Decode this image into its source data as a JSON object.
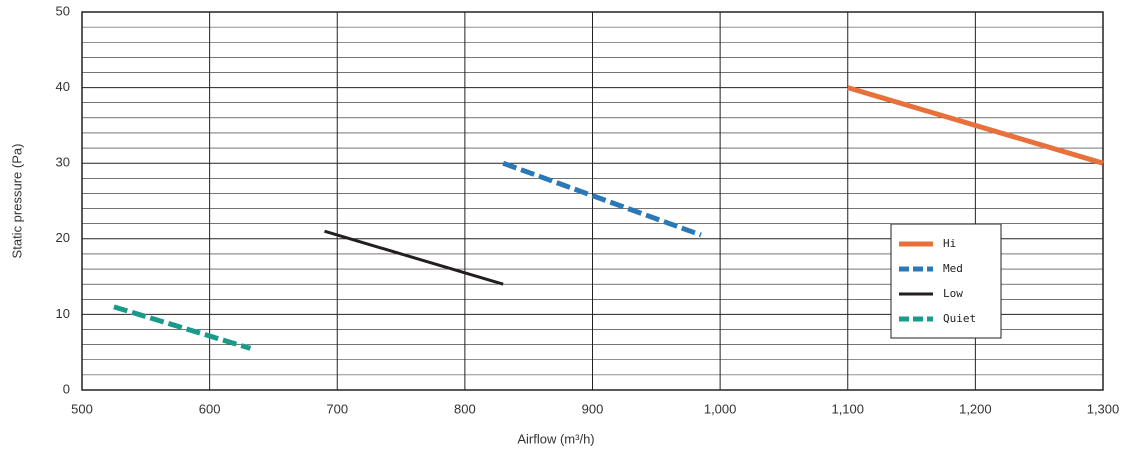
{
  "chart_data": {
    "type": "line",
    "x_label": "Airflow (m³/h)",
    "y_label": "Static pressure (Pa)",
    "xlim": [
      500,
      1300
    ],
    "xticks": [
      500,
      600,
      700,
      800,
      900,
      {
        "value": 1000,
        "label": "1,000"
      },
      {
        "value": 1100,
        "label": "1,100"
      },
      {
        "value": 1200,
        "label": "1,200"
      },
      {
        "value": 1300,
        "label": "1,300"
      }
    ],
    "ylim": [
      0,
      50
    ],
    "yticks": [
      0,
      10,
      20,
      30,
      40,
      50
    ],
    "minor_yticks": [
      2,
      4,
      6,
      8,
      12,
      14,
      16,
      18,
      22,
      24,
      26,
      28,
      32,
      34,
      36,
      38,
      42,
      44,
      46,
      48
    ],
    "grid": true,
    "legend": "lower right",
    "series": [
      {
        "name": "Hi",
        "color": "#e8703a",
        "dash": false,
        "x": [
          1100,
          1300
        ],
        "values": [
          40,
          30
        ]
      },
      {
        "name": "Med",
        "color": "#2a78b8",
        "dash": true,
        "x": [
          830,
          985
        ],
        "values": [
          30,
          20.5
        ]
      },
      {
        "name": "Low",
        "color": "#231f20",
        "dash": false,
        "x": [
          690,
          830
        ],
        "values": [
          21,
          14
        ]
      },
      {
        "name": "Quiet",
        "color": "#1a9b8a",
        "dash": true,
        "x": [
          525,
          632
        ],
        "values": [
          11,
          5.5
        ]
      }
    ]
  }
}
